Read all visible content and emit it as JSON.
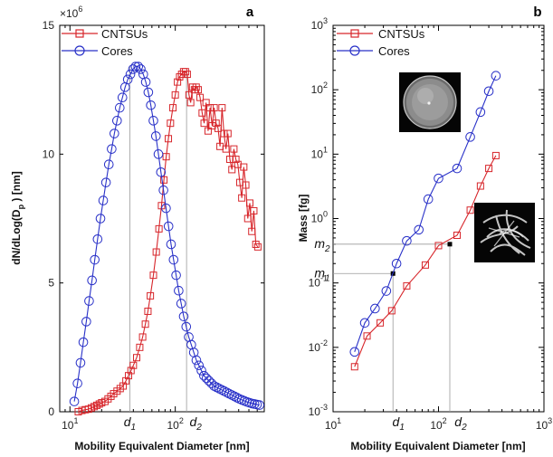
{
  "chart_data": [
    {
      "panel": "a",
      "type": "line",
      "xscale": "log",
      "xlim": [
        8,
        700
      ],
      "ylim": [
        0,
        15000000
      ],
      "xlabel": "Mobility Equivalent Diameter [nm]",
      "ylabel": "dN/dLog(Dp ) [nm]",
      "ylabel_main": "dN/dLog(D",
      "ylabel_sub": "p",
      "ylabel_tail": ") [nm]",
      "y_multiplier": "×10",
      "y_multiplier_exp": "6",
      "y_ticks": [
        0,
        5,
        10,
        15
      ],
      "x_tick_labels": [
        {
          "value": 10,
          "base": "10",
          "exp": "1"
        },
        {
          "value": 100,
          "base": "10",
          "exp": "2"
        }
      ],
      "legend_position": "top-left",
      "markers": [
        {
          "label": "d",
          "sub": "1",
          "x": 37
        },
        {
          "label": "d",
          "sub": "2",
          "x": 128
        }
      ],
      "series": [
        {
          "name": "CNTSUs",
          "color": "#d7262b",
          "marker": "square",
          "x": [
            12,
            13,
            14,
            15,
            16,
            17,
            18,
            19,
            20,
            21.5,
            23,
            24.5,
            26,
            28,
            30,
            32,
            34,
            36,
            38,
            40,
            43,
            46,
            49,
            52,
            55,
            58,
            62,
            66,
            70,
            74,
            78,
            82,
            86,
            90,
            95,
            100,
            105,
            110,
            115,
            120,
            125,
            130,
            135,
            140,
            146,
            152,
            158,
            165,
            172,
            180,
            188,
            196,
            205,
            214,
            224,
            234,
            244,
            255,
            266,
            278,
            290,
            303,
            316,
            330,
            345,
            360,
            376,
            393,
            410,
            428,
            447,
            467,
            488,
            510,
            533,
            557,
            582,
            608
          ],
          "y": [
            0.0,
            0.05,
            0.08,
            0.1,
            0.15,
            0.2,
            0.25,
            0.3,
            0.35,
            0.4,
            0.5,
            0.6,
            0.7,
            0.8,
            0.9,
            1.0,
            1.2,
            1.4,
            1.6,
            1.8,
            2.1,
            2.5,
            2.9,
            3.4,
            3.9,
            4.5,
            5.3,
            6.2,
            7.1,
            8.0,
            9.0,
            9.9,
            10.6,
            11.2,
            11.8,
            12.3,
            12.8,
            13.0,
            13.1,
            13.2,
            13.2,
            13.1,
            12.3,
            12.0,
            12.6,
            12.5,
            12.6,
            12.5,
            12.2,
            11.6,
            11.2,
            12.0,
            10.9,
            11.8,
            11.1,
            11.8,
            11.2,
            11.0,
            10.3,
            11.8,
            10.8,
            10.2,
            10.8,
            9.8,
            9.4,
            10.2,
            9.8,
            9.6,
            8.9,
            8.3,
            9.5,
            8.8,
            7.5,
            8.1,
            7.0,
            7.8,
            6.5,
            6.4
          ]
        },
        {
          "name": "Cores",
          "color": "#2931c8",
          "marker": "circle",
          "x": [
            11,
            11.8,
            12.6,
            13.4,
            14.3,
            15.2,
            16.2,
            17.2,
            18.3,
            19.5,
            20.7,
            22,
            23.4,
            24.9,
            26.4,
            28,
            29.7,
            31.5,
            33.4,
            35.4,
            37.5,
            39.7,
            42,
            44.5,
            47,
            49.7,
            52.5,
            55.5,
            58.6,
            62,
            65.5,
            69.2,
            73.1,
            77.3,
            81.7,
            86.3,
            91.2,
            96.4,
            101.9,
            107.7,
            113.8,
            120.3,
            127.1,
            134.3,
            142,
            150,
            158.6,
            167.6,
            177.1,
            187.2,
            197.8,
            209,
            221,
            233.6,
            246.9,
            261,
            275.8,
            291.5,
            308,
            325.5,
            344,
            363.5,
            384,
            406,
            429,
            453,
            479,
            506,
            535,
            565,
            597,
            630
          ],
          "y": [
            0.4,
            1.1,
            1.9,
            2.7,
            3.5,
            4.3,
            5.1,
            5.9,
            6.7,
            7.5,
            8.2,
            8.9,
            9.6,
            10.2,
            10.8,
            11.3,
            11.8,
            12.2,
            12.6,
            12.9,
            13.1,
            13.3,
            13.4,
            13.4,
            13.3,
            13.1,
            12.8,
            12.4,
            11.9,
            11.3,
            10.7,
            10.0,
            9.3,
            8.6,
            7.9,
            7.2,
            6.5,
            5.9,
            5.3,
            4.7,
            4.2,
            3.7,
            3.3,
            2.9,
            2.6,
            2.3,
            2.0,
            1.8,
            1.6,
            1.4,
            1.3,
            1.2,
            1.1,
            1.0,
            0.95,
            0.9,
            0.85,
            0.8,
            0.75,
            0.7,
            0.65,
            0.6,
            0.55,
            0.5,
            0.46,
            0.42,
            0.38,
            0.35,
            0.32,
            0.3,
            0.28,
            0.26
          ]
        }
      ]
    },
    {
      "panel": "b",
      "type": "line",
      "xscale": "log",
      "yscale": "log",
      "xlim": [
        10,
        1000
      ],
      "ylim": [
        0.001,
        1000
      ],
      "xlabel": "Mobility Equivalent Diameter [nm]",
      "ylabel": "Mass [fg]",
      "x_tick_labels": [
        {
          "value": 10,
          "base": "10",
          "exp": "1"
        },
        {
          "value": 100,
          "base": "10",
          "exp": "2"
        },
        {
          "value": 1000,
          "base": "10",
          "exp": "3"
        }
      ],
      "y_tick_labels": [
        {
          "value": 0.001,
          "base": "10",
          "exp": "-3"
        },
        {
          "value": 0.01,
          "base": "10",
          "exp": "-2"
        },
        {
          "value": 0.1,
          "base": "10",
          "exp": "-1"
        },
        {
          "value": 1,
          "base": "10",
          "exp": "0"
        },
        {
          "value": 10,
          "base": "10",
          "exp": "1"
        },
        {
          "value": 100,
          "base": "10",
          "exp": "2"
        },
        {
          "value": 1000,
          "base": "10",
          "exp": "3"
        }
      ],
      "legend_position": "top-left",
      "reference_lines": [
        {
          "x_label": "d",
          "x_sub": "1",
          "x": 37,
          "y_label": "m",
          "y_sub": "1",
          "y": 0.14
        },
        {
          "x_label": "d",
          "x_sub": "2",
          "x": 128,
          "y_label": "m",
          "y_sub": "2",
          "y": 0.4
        }
      ],
      "insets": [
        {
          "name": "core-particle-image",
          "near_series": "Cores",
          "position": "upper-middle"
        },
        {
          "name": "cntsu-particle-image",
          "near_series": "CNTSUs",
          "position": "middle-right"
        }
      ],
      "series": [
        {
          "name": "CNTSUs",
          "color": "#d7262b",
          "marker": "square",
          "x": [
            16,
            21,
            28,
            36,
            50,
            75,
            100,
            150,
            200,
            250,
            300,
            350
          ],
          "y": [
            0.005,
            0.015,
            0.024,
            0.037,
            0.09,
            0.19,
            0.38,
            0.55,
            1.35,
            3.2,
            6.0,
            9.5
          ]
        },
        {
          "name": "Cores",
          "color": "#2931c8",
          "marker": "circle",
          "x": [
            16,
            20,
            25,
            32,
            40,
            50,
            65,
            80,
            100,
            150,
            200,
            250,
            300,
            350
          ],
          "y": [
            0.0085,
            0.024,
            0.04,
            0.075,
            0.2,
            0.45,
            0.67,
            2.0,
            4.2,
            6.0,
            18.5,
            45,
            95,
            165
          ]
        }
      ]
    }
  ],
  "panel_a": {
    "letter": "a",
    "xlabel": "Mobility Equivalent Diameter [nm]",
    "legend": {
      "cntsus": "CNTSUs",
      "cores": "Cores"
    },
    "y_multiplier": "×10",
    "y_multiplier_exp": "6"
  },
  "panel_b": {
    "letter": "b",
    "xlabel": "Mobility Equivalent Diameter [nm]",
    "ylabel": "Mass [fg]",
    "legend": {
      "cntsus": "CNTSUs",
      "cores": "Cores"
    }
  },
  "colors": {
    "cntsus": "#d7262b",
    "cores": "#2931c8",
    "axis": "#000000",
    "guide": "#9a9a9a"
  }
}
